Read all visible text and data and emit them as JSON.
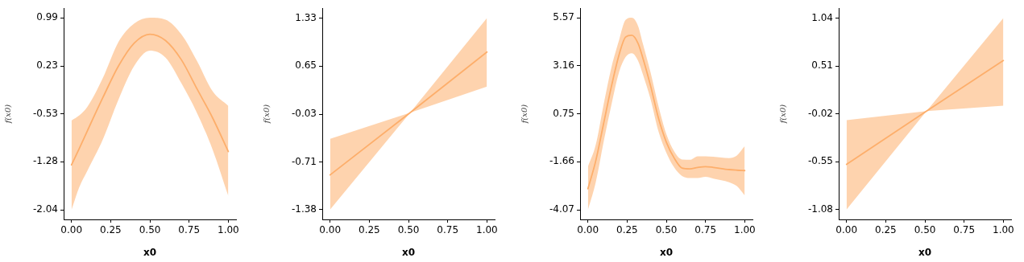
{
  "chart_data": [
    {
      "type": "line",
      "xlabel": "x0",
      "ylabel": "f(x0)",
      "xlim": [
        -0.05,
        1.05
      ],
      "ylim": [
        -2.19,
        1.14
      ],
      "xticks": [
        {
          "value": 0,
          "label": "0.00"
        },
        {
          "value": 0.25,
          "label": "0.25"
        },
        {
          "value": 0.5,
          "label": "0.50"
        },
        {
          "value": 0.75,
          "label": "0.75"
        },
        {
          "value": 1,
          "label": "1.00"
        }
      ],
      "yticks": [
        -2.04,
        -1.28,
        -0.53,
        0.23,
        0.99
      ],
      "series": [
        {
          "color": "#fdae6b",
          "x": [
            0,
            0.05,
            0.1,
            0.2,
            0.3,
            0.4,
            0.5,
            0.6,
            0.7,
            0.8,
            0.9,
            1
          ],
          "values": [
            -1.33,
            -1.07,
            -0.8,
            -0.27,
            0.23,
            0.59,
            0.73,
            0.63,
            0.33,
            -0.13,
            -0.59,
            -1.12
          ],
          "lower": [
            -2.04,
            -1.68,
            -1.43,
            -0.93,
            -0.3,
            0.23,
            0.47,
            0.36,
            -0.04,
            -0.51,
            -1.09,
            -1.82
          ],
          "upper": [
            -0.63,
            -0.55,
            -0.42,
            0.04,
            0.61,
            0.9,
            0.99,
            0.96,
            0.73,
            0.31,
            -0.17,
            -0.4
          ]
        }
      ]
    },
    {
      "type": "line",
      "xlabel": "x0",
      "ylabel": "f(x0)",
      "xlim": [
        -0.05,
        1.05
      ],
      "ylim": [
        -1.52,
        1.47
      ],
      "xticks": [
        {
          "value": 0,
          "label": "0.00"
        },
        {
          "value": 0.25,
          "label": "0.25"
        },
        {
          "value": 0.5,
          "label": "0.50"
        },
        {
          "value": 0.75,
          "label": "0.75"
        },
        {
          "value": 1,
          "label": "1.00"
        }
      ],
      "yticks": [
        -1.38,
        -0.71,
        -0.03,
        0.65,
        1.33
      ],
      "series": [
        {
          "color": "#fdae6b",
          "x": [
            0,
            0.51,
            1
          ],
          "values": [
            -0.89,
            -0.01,
            0.85
          ],
          "lower": [
            -1.38,
            -0.01,
            0.36
          ],
          "upper": [
            -0.38,
            -0.01,
            1.33
          ]
        }
      ]
    },
    {
      "type": "line",
      "xlabel": "x0",
      "ylabel": "f(x0)",
      "xlim": [
        -0.05,
        1.05
      ],
      "ylim": [
        -4.55,
        6.05
      ],
      "xticks": [
        {
          "value": 0,
          "label": "0.00"
        },
        {
          "value": 0.25,
          "label": "0.25"
        },
        {
          "value": 0.5,
          "label": "0.50"
        },
        {
          "value": 0.75,
          "label": "0.75"
        },
        {
          "value": 1,
          "label": "1.00"
        }
      ],
      "yticks": [
        -4.07,
        -1.66,
        0.75,
        3.16,
        5.57
      ],
      "series": [
        {
          "color": "#fdae6b",
          "x": [
            0,
            0.05,
            0.1,
            0.15,
            0.2,
            0.24,
            0.28,
            0.32,
            0.35,
            0.4,
            0.45,
            0.5,
            0.55,
            0.6,
            0.65,
            0.7,
            0.75,
            0.8,
            0.9,
            0.95,
            1
          ],
          "values": [
            -3.01,
            -1.61,
            0.26,
            2.13,
            3.75,
            4.6,
            4.69,
            4.28,
            3.56,
            2.14,
            0.53,
            -0.67,
            -1.47,
            -1.97,
            -2.01,
            -1.94,
            -1.9,
            -1.94,
            -2.05,
            -2.08,
            -2.1
          ],
          "lower": [
            -4.07,
            -2.68,
            -0.67,
            1.21,
            2.88,
            3.6,
            3.79,
            3.41,
            2.74,
            1.47,
            -0.13,
            -1.2,
            -1.94,
            -2.37,
            -2.47,
            -2.47,
            -2.41,
            -2.5,
            -2.68,
            -2.88,
            -3.35
          ],
          "upper": [
            -1.9,
            -0.8,
            1.21,
            3.08,
            4.49,
            5.46,
            5.57,
            5.15,
            4.28,
            2.81,
            1.14,
            -0.26,
            -1.13,
            -1.54,
            -1.56,
            -1.38,
            -1.38,
            -1.4,
            -1.47,
            -1.34,
            -0.87
          ]
        }
      ]
    },
    {
      "type": "line",
      "xlabel": "x0",
      "ylabel": "f(x0)",
      "xlim": [
        -0.05,
        1.05
      ],
      "ylim": [
        -1.19,
        1.15
      ],
      "xticks": [
        {
          "value": 0,
          "label": "0.00"
        },
        {
          "value": 0.25,
          "label": "0.25"
        },
        {
          "value": 0.5,
          "label": "0.50"
        },
        {
          "value": 0.75,
          "label": "0.75"
        },
        {
          "value": 1,
          "label": "1.00"
        }
      ],
      "yticks": [
        -1.08,
        -0.55,
        -0.02,
        0.51,
        1.04
      ],
      "series": [
        {
          "color": "#fdae6b",
          "x": [
            0,
            0.51,
            1
          ],
          "values": [
            -0.58,
            0.01,
            0.57
          ],
          "lower": [
            -1.08,
            0.01,
            0.07
          ],
          "upper": [
            -0.09,
            0.01,
            1.04
          ]
        }
      ]
    }
  ]
}
